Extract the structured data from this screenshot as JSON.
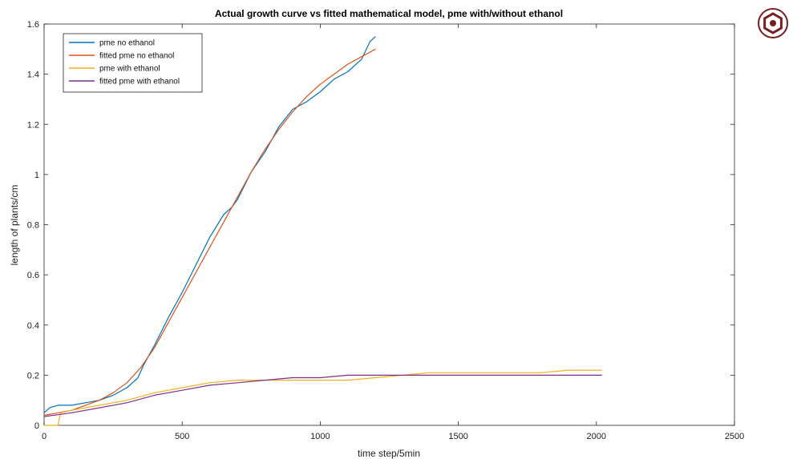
{
  "chart_data": {
    "type": "line",
    "title": "Actual growth curve vs fitted mathematical model, pme with/without ethanol",
    "xlabel": "time step/5min",
    "ylabel": "length of plants/cm",
    "xlim": [
      0,
      2500
    ],
    "ylim": [
      0,
      1.6
    ],
    "xticks": [
      0,
      500,
      1000,
      1500,
      2000,
      2500
    ],
    "yticks": [
      0,
      0.2,
      0.4,
      0.6,
      0.8,
      1,
      1.2,
      1.4,
      1.6
    ],
    "xtick_labels": [
      "0",
      "500",
      "1000",
      "1500",
      "2000",
      "2500"
    ],
    "ytick_labels": [
      "0",
      "0.2",
      "0.4",
      "0.6",
      "0.8",
      "1",
      "1.2",
      "1.4",
      "1.6"
    ],
    "grid": false,
    "legend_position": "top-left",
    "series": [
      {
        "name": "pme no ethanol",
        "color": "#0072BD",
        "x": [
          0,
          20,
          50,
          100,
          150,
          200,
          250,
          300,
          320,
          340,
          360,
          380,
          400,
          450,
          500,
          550,
          600,
          650,
          680,
          700,
          750,
          800,
          850,
          900,
          950,
          1000,
          1050,
          1100,
          1150,
          1180,
          1200
        ],
        "y": [
          0.05,
          0.07,
          0.08,
          0.08,
          0.09,
          0.1,
          0.12,
          0.15,
          0.17,
          0.19,
          0.24,
          0.28,
          0.32,
          0.43,
          0.53,
          0.64,
          0.75,
          0.84,
          0.87,
          0.9,
          1.01,
          1.09,
          1.19,
          1.26,
          1.29,
          1.33,
          1.38,
          1.41,
          1.46,
          1.53,
          1.55
        ]
      },
      {
        "name": "fitted pme no ethanol",
        "color": "#D95319",
        "x": [
          0,
          50,
          100,
          150,
          200,
          250,
          300,
          350,
          400,
          450,
          500,
          550,
          600,
          650,
          700,
          750,
          800,
          850,
          900,
          950,
          1000,
          1050,
          1100,
          1150,
          1200
        ],
        "y": [
          0.04,
          0.05,
          0.06,
          0.08,
          0.1,
          0.13,
          0.17,
          0.23,
          0.31,
          0.41,
          0.51,
          0.61,
          0.71,
          0.81,
          0.91,
          1.01,
          1.1,
          1.18,
          1.25,
          1.31,
          1.36,
          1.4,
          1.44,
          1.47,
          1.5
        ]
      },
      {
        "name": "pme with ethanol",
        "color": "#EDB120",
        "x": [
          0,
          50,
          60,
          100,
          200,
          300,
          400,
          500,
          600,
          700,
          800,
          900,
          1000,
          1100,
          1200,
          1300,
          1400,
          1500,
          1600,
          1700,
          1800,
          1900,
          2000,
          2020
        ],
        "y": [
          0.0,
          0.0,
          0.05,
          0.06,
          0.08,
          0.1,
          0.13,
          0.15,
          0.17,
          0.18,
          0.18,
          0.18,
          0.18,
          0.18,
          0.19,
          0.2,
          0.21,
          0.21,
          0.21,
          0.21,
          0.21,
          0.22,
          0.22,
          0.22
        ]
      },
      {
        "name": "fitted pme with ethanol",
        "color": "#7E2F8E",
        "x": [
          0,
          100,
          200,
          300,
          400,
          500,
          600,
          700,
          800,
          900,
          1000,
          1100,
          1200,
          1300,
          1400,
          1500,
          1600,
          1700,
          1800,
          1900,
          2000,
          2020
        ],
        "y": [
          0.035,
          0.05,
          0.07,
          0.09,
          0.12,
          0.14,
          0.16,
          0.17,
          0.18,
          0.19,
          0.19,
          0.2,
          0.2,
          0.2,
          0.2,
          0.2,
          0.2,
          0.2,
          0.2,
          0.2,
          0.2,
          0.2
        ]
      }
    ]
  },
  "icons": {
    "corner": "hexagon-nut-icon"
  }
}
